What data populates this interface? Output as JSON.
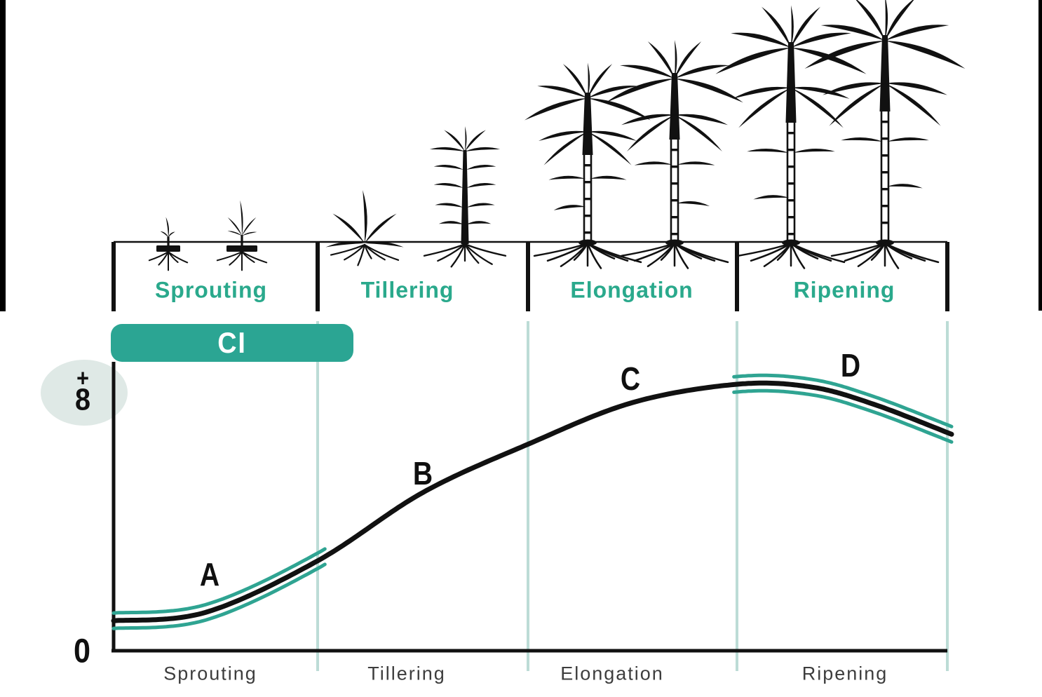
{
  "badge": {
    "label": "CI"
  },
  "y_axis": {
    "max_sign": "+",
    "max_value": "8",
    "origin": "0"
  },
  "stage_headers": [
    "Sprouting",
    "Tillering",
    "Elongation",
    "Ripening"
  ],
  "x_axis": {
    "labels": [
      "Sprouting",
      "Tillering",
      "Elongation",
      "Ripening"
    ]
  },
  "curve_labels": [
    "A",
    "B",
    "C",
    "D"
  ],
  "colors": {
    "teal": "#2aa98c",
    "teal_badge": "#2ba593",
    "teal_accent": "#2fa492",
    "divider": "#bcdcd6",
    "highlight_bg": "#dfe9e6",
    "ink": "#111111",
    "axis_label": "#3d3d3d"
  },
  "chart_data": {
    "type": "line",
    "title": "",
    "categories": [
      "Sprouting",
      "Tillering",
      "Elongation",
      "Ripening"
    ],
    "ylim": [
      0,
      8
    ],
    "y_tick_labels": [
      "0",
      "+8"
    ],
    "grid": "vertical stage divider lines, light teal",
    "legend": false,
    "series": [
      {
        "name": "growth-curve",
        "x": [
          0,
          0.45,
          1.0,
          1.5,
          2.0,
          2.5,
          3.0,
          3.35,
          3.65,
          4.02
        ],
        "y": [
          0.9,
          1.15,
          2.7,
          4.75,
          6.2,
          7.45,
          8.0,
          7.92,
          7.4,
          6.5
        ]
      }
    ],
    "accent_segments": [
      {
        "label": "A",
        "x_range": [
          0,
          1.04
        ]
      },
      {
        "label": "D",
        "x_range": [
          2.98,
          4.03
        ]
      }
    ],
    "ci_band": {
      "label": "CI",
      "x_range": [
        0,
        1.17
      ]
    },
    "annotations": [
      {
        "label": "A",
        "x": 0.47,
        "y": 2.29
      },
      {
        "label": "B",
        "x": 1.5,
        "y": 5.33
      },
      {
        "label": "C",
        "x": 2.49,
        "y": 8.17
      },
      {
        "label": "D",
        "x": 3.54,
        "y": 8.57
      }
    ]
  }
}
